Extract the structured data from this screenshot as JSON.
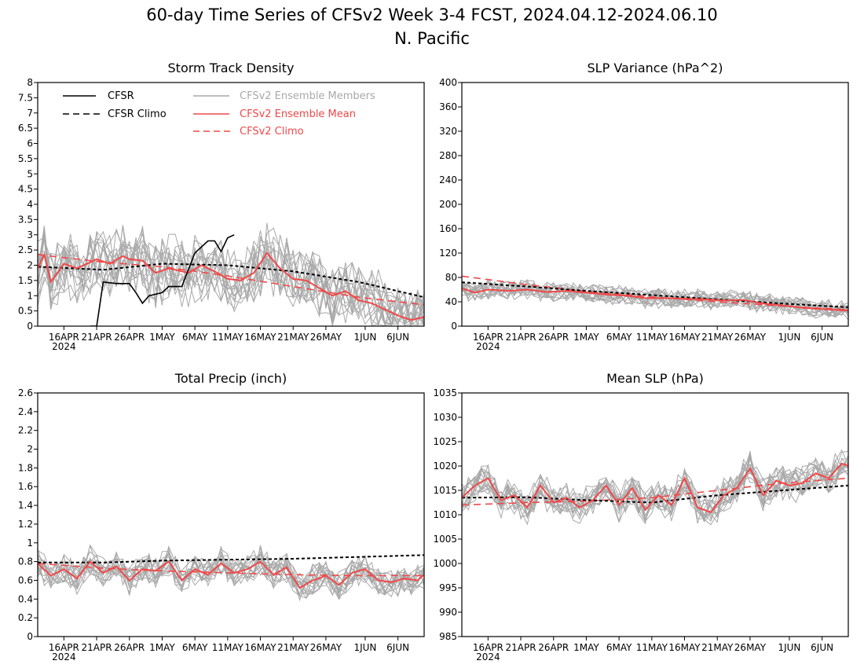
{
  "figure": {
    "title_line1": "60-day Time Series of CFSv2 Week 3-4 FCST, 2024.04.12-2024.06.10",
    "title_line2": "N. Pacific"
  },
  "legend": {
    "cfsr": "CFSR",
    "cfsr_climo": "CFSR Climo",
    "members": "CFSv2 Ensemble Members",
    "ens_mean": "CFSv2 Ensemble Mean",
    "cfsv2_climo": "CFSv2 Climo"
  },
  "colors": {
    "cfsr": "#000000",
    "members": "#a8a8a8",
    "ens_mean": "#f04848",
    "legend_members_text": "#a8a8a8",
    "legend_red_text": "#f04848"
  },
  "x_axis": {
    "start": "2024-04-12",
    "end": "2024-06-10",
    "ticks": [
      {
        "date": "2024-04-16",
        "label": "16APR",
        "year": "2024"
      },
      {
        "date": "2024-04-21",
        "label": "21APR"
      },
      {
        "date": "2024-04-26",
        "label": "26APR"
      },
      {
        "date": "2024-05-01",
        "label": "1MAY"
      },
      {
        "date": "2024-05-06",
        "label": "6MAY"
      },
      {
        "date": "2024-05-11",
        "label": "11MAY"
      },
      {
        "date": "2024-05-16",
        "label": "16MAY"
      },
      {
        "date": "2024-05-21",
        "label": "21MAY"
      },
      {
        "date": "2024-05-26",
        "label": "26MAY"
      },
      {
        "date": "2024-06-01",
        "label": "1JUN"
      },
      {
        "date": "2024-06-06",
        "label": "6JUN"
      }
    ]
  },
  "chart_data": [
    {
      "type": "line",
      "title": "Storm Track Density",
      "ylim": [
        0,
        8
      ],
      "yticks": [
        "0",
        "0.5",
        "1",
        "1.5",
        "2",
        "2.5",
        "3",
        "3.5",
        "4",
        "4.5",
        "5",
        "5.5",
        "6",
        "6.5",
        "7",
        "7.5",
        "8"
      ],
      "member_count": 16,
      "series": [
        {
          "name": "CFSR",
          "x": [
            "2024-04-20",
            "2024-04-21",
            "2024-04-22",
            "2024-04-24",
            "2024-04-26",
            "2024-04-27",
            "2024-04-28",
            "2024-04-29",
            "2024-05-01",
            "2024-05-02",
            "2024-05-04",
            "2024-05-06",
            "2024-05-08",
            "2024-05-09",
            "2024-05-10",
            "2024-05-11",
            "2024-05-12"
          ],
          "values": [
            0,
            0,
            1.45,
            1.4,
            1.4,
            1.1,
            0.75,
            1.0,
            1.1,
            1.3,
            1.3,
            2.4,
            2.8,
            2.8,
            2.45,
            2.9,
            3.0
          ]
        },
        {
          "name": "CFSR Climo",
          "x": [
            "2024-04-12",
            "2024-04-22",
            "2024-05-01",
            "2024-05-11",
            "2024-05-21",
            "2024-05-31",
            "2024-06-10"
          ],
          "values": [
            1.95,
            1.85,
            2.05,
            2.0,
            1.8,
            1.45,
            0.95
          ]
        },
        {
          "name": "CFSv2 Climo",
          "x": [
            "2024-04-12",
            "2024-04-22",
            "2024-05-01",
            "2024-05-11",
            "2024-05-21",
            "2024-05-31",
            "2024-06-10"
          ],
          "values": [
            2.35,
            2.1,
            1.95,
            1.65,
            1.3,
            0.95,
            0.7
          ]
        },
        {
          "name": "CFSv2 Ensemble Mean",
          "x": [
            "2024-04-12",
            "2024-04-13",
            "2024-04-14",
            "2024-04-16",
            "2024-04-18",
            "2024-04-21",
            "2024-04-23",
            "2024-04-25",
            "2024-04-26",
            "2024-04-28",
            "2024-04-30",
            "2024-05-02",
            "2024-05-05",
            "2024-05-07",
            "2024-05-09",
            "2024-05-11",
            "2024-05-13",
            "2024-05-15",
            "2024-05-17",
            "2024-05-19",
            "2024-05-21",
            "2024-05-23",
            "2024-05-25",
            "2024-05-27",
            "2024-05-29",
            "2024-05-31",
            "2024-06-02",
            "2024-06-04",
            "2024-06-06",
            "2024-06-08",
            "2024-06-10"
          ],
          "values": [
            1.9,
            2.35,
            1.45,
            2.05,
            1.9,
            2.2,
            2.05,
            2.3,
            2.2,
            2.15,
            1.75,
            1.9,
            1.75,
            2.0,
            1.8,
            1.55,
            1.5,
            1.75,
            2.4,
            1.9,
            1.55,
            1.5,
            1.25,
            1.0,
            1.15,
            0.85,
            0.75,
            0.55,
            0.35,
            0.2,
            0.3
          ]
        }
      ]
    },
    {
      "type": "line",
      "title": "SLP Variance (hPa^2)",
      "ylim": [
        0,
        400
      ],
      "yticks": [
        "0",
        "40",
        "80",
        "120",
        "160",
        "200",
        "240",
        "280",
        "320",
        "360",
        "400"
      ],
      "member_count": 16,
      "series": [
        {
          "name": "CFSR Climo",
          "x": [
            "2024-04-12",
            "2024-04-22",
            "2024-05-01",
            "2024-05-11",
            "2024-05-21",
            "2024-05-31",
            "2024-06-10"
          ],
          "values": [
            72,
            65,
            58,
            51,
            44,
            37,
            31
          ]
        },
        {
          "name": "CFSv2 Climo",
          "x": [
            "2024-04-12",
            "2024-04-22",
            "2024-05-01",
            "2024-05-11",
            "2024-05-21",
            "2024-05-31",
            "2024-06-10"
          ],
          "values": [
            82,
            68,
            57,
            48,
            40,
            33,
            27
          ]
        },
        {
          "name": "CFSv2 Ensemble Mean",
          "x": [
            "2024-04-12",
            "2024-04-14",
            "2024-04-16",
            "2024-04-19",
            "2024-04-22",
            "2024-04-25",
            "2024-04-28",
            "2024-05-01",
            "2024-05-04",
            "2024-05-07",
            "2024-05-10",
            "2024-05-13",
            "2024-05-16",
            "2024-05-19",
            "2024-05-22",
            "2024-05-25",
            "2024-05-28",
            "2024-05-31",
            "2024-06-03",
            "2024-06-06",
            "2024-06-09",
            "2024-06-10"
          ],
          "values": [
            62,
            55,
            60,
            58,
            60,
            56,
            58,
            55,
            52,
            50,
            46,
            46,
            45,
            44,
            42,
            43,
            37,
            34,
            30,
            28,
            26,
            26
          ]
        }
      ]
    },
    {
      "type": "line",
      "title": "Total Precip (inch)",
      "ylim": [
        0,
        2.6
      ],
      "yticks": [
        "0",
        "0.2",
        "0.4",
        "0.6",
        "0.8",
        "1",
        "1.2",
        "1.4",
        "1.6",
        "1.8",
        "2",
        "2.2",
        "2.4",
        "2.6"
      ],
      "member_count": 16,
      "series": [
        {
          "name": "CFSR Climo",
          "x": [
            "2024-04-12",
            "2024-04-22",
            "2024-05-01",
            "2024-05-11",
            "2024-05-21",
            "2024-05-31",
            "2024-06-10"
          ],
          "values": [
            0.79,
            0.79,
            0.81,
            0.82,
            0.83,
            0.85,
            0.87
          ]
        },
        {
          "name": "CFSv2 Climo",
          "x": [
            "2024-04-12",
            "2024-04-22",
            "2024-05-01",
            "2024-05-11",
            "2024-05-21",
            "2024-05-31",
            "2024-06-10"
          ],
          "values": [
            0.78,
            0.73,
            0.7,
            0.68,
            0.66,
            0.65,
            0.65
          ]
        },
        {
          "name": "CFSv2 Ensemble Mean",
          "x": [
            "2024-04-12",
            "2024-04-14",
            "2024-04-16",
            "2024-04-18",
            "2024-04-20",
            "2024-04-22",
            "2024-04-24",
            "2024-04-26",
            "2024-04-28",
            "2024-04-30",
            "2024-05-02",
            "2024-05-04",
            "2024-05-06",
            "2024-05-08",
            "2024-05-10",
            "2024-05-12",
            "2024-05-14",
            "2024-05-16",
            "2024-05-18",
            "2024-05-20",
            "2024-05-22",
            "2024-05-24",
            "2024-05-26",
            "2024-05-28",
            "2024-05-30",
            "2024-06-01",
            "2024-06-03",
            "2024-06-05",
            "2024-06-07",
            "2024-06-09",
            "2024-06-10"
          ],
          "values": [
            0.78,
            0.65,
            0.72,
            0.62,
            0.8,
            0.68,
            0.75,
            0.6,
            0.72,
            0.7,
            0.8,
            0.6,
            0.72,
            0.66,
            0.78,
            0.68,
            0.72,
            0.8,
            0.66,
            0.74,
            0.52,
            0.6,
            0.65,
            0.55,
            0.68,
            0.72,
            0.6,
            0.58,
            0.62,
            0.6,
            0.66
          ]
        }
      ]
    },
    {
      "type": "line",
      "title": "Mean SLP (hPa)",
      "ylim": [
        985,
        1035
      ],
      "yticks": [
        "985",
        "990",
        "995",
        "1000",
        "1005",
        "1010",
        "1015",
        "1020",
        "1025",
        "1030",
        "1035"
      ],
      "member_count": 16,
      "series": [
        {
          "name": "CFSR Climo",
          "x": [
            "2024-04-12",
            "2024-04-22",
            "2024-05-01",
            "2024-05-11",
            "2024-05-21",
            "2024-05-31",
            "2024-06-10"
          ],
          "values": [
            1013.5,
            1013.6,
            1013.0,
            1012.5,
            1014.0,
            1015.0,
            1016.0
          ]
        },
        {
          "name": "CFSv2 Climo",
          "x": [
            "2024-04-12",
            "2024-04-22",
            "2024-05-01",
            "2024-05-11",
            "2024-05-21",
            "2024-05-31",
            "2024-06-10"
          ],
          "values": [
            1012.0,
            1012.5,
            1012.8,
            1013.5,
            1015.0,
            1016.5,
            1017.5
          ]
        },
        {
          "name": "CFSv2 Ensemble Mean",
          "x": [
            "2024-04-12",
            "2024-04-14",
            "2024-04-16",
            "2024-04-18",
            "2024-04-20",
            "2024-04-22",
            "2024-04-24",
            "2024-04-26",
            "2024-04-28",
            "2024-04-30",
            "2024-05-02",
            "2024-05-04",
            "2024-05-06",
            "2024-05-08",
            "2024-05-10",
            "2024-05-12",
            "2024-05-14",
            "2024-05-16",
            "2024-05-18",
            "2024-05-20",
            "2024-05-22",
            "2024-05-24",
            "2024-05-26",
            "2024-05-28",
            "2024-05-30",
            "2024-06-01",
            "2024-06-03",
            "2024-06-05",
            "2024-06-07",
            "2024-06-09",
            "2024-06-10"
          ],
          "values": [
            1013.5,
            1016.0,
            1017.5,
            1013.0,
            1014.0,
            1011.5,
            1016.0,
            1012.5,
            1013.5,
            1011.5,
            1013.0,
            1016.0,
            1012.0,
            1015.5,
            1011.0,
            1014.0,
            1012.0,
            1017.5,
            1011.5,
            1010.5,
            1014.0,
            1015.5,
            1019.5,
            1014.0,
            1017.0,
            1016.0,
            1016.5,
            1018.5,
            1017.5,
            1020.5,
            1020.0
          ]
        }
      ]
    }
  ]
}
